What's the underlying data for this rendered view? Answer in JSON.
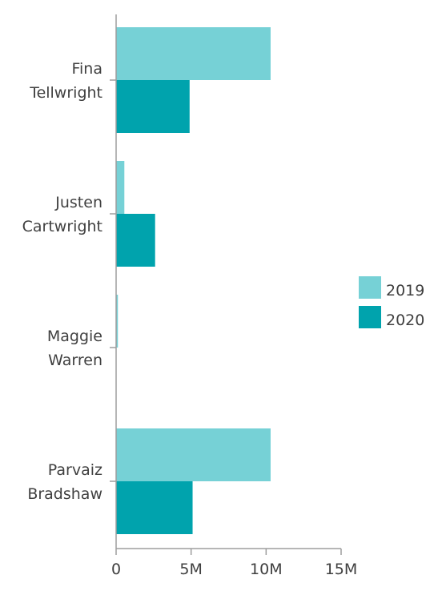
{
  "chart_data": {
    "type": "bar",
    "orientation": "horizontal",
    "categories": [
      [
        "Fina",
        "Tellwright"
      ],
      [
        "Justen",
        "Cartwright"
      ],
      [
        "Maggie",
        "Warren"
      ],
      [
        "Parvaiz",
        "Bradshaw"
      ]
    ],
    "series": [
      {
        "name": "2019",
        "color": "#76d1d6",
        "values": [
          10300000,
          550000,
          120000,
          10300000
        ]
      },
      {
        "name": "2020",
        "color": "#00a3ad",
        "values": [
          4900000,
          2600000,
          0,
          5100000
        ]
      }
    ],
    "xlim": [
      0,
      15000000
    ],
    "xticks": [
      {
        "value": 0,
        "label": "0"
      },
      {
        "value": 5000000,
        "label": "5M"
      },
      {
        "value": 10000000,
        "label": "10M"
      },
      {
        "value": 15000000,
        "label": "15M"
      }
    ],
    "title": "",
    "xlabel": "",
    "ylabel": "",
    "grid": false,
    "legend_position": "right"
  }
}
